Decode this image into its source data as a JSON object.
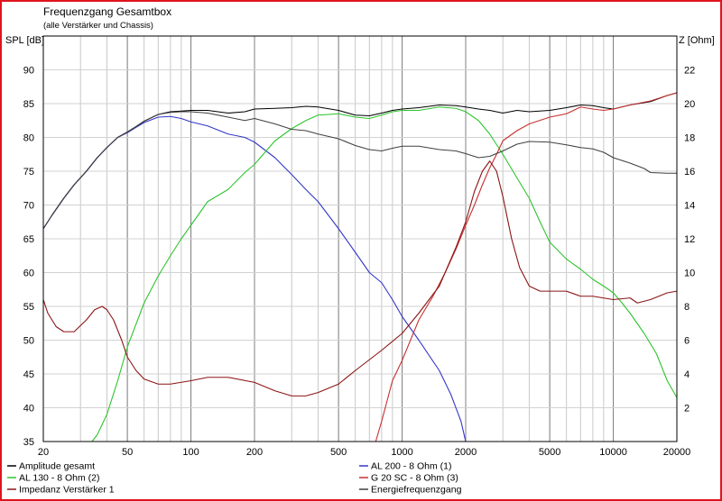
{
  "chart_data": {
    "type": "line",
    "title": "Frequenzgang Gesamtbox",
    "subtitle": "(alle Verstärker und Chassis)",
    "ylabel_left": "SPL [dB]",
    "ylabel_right": "Z [Ohm]",
    "x_scale": "log",
    "xlim": [
      20,
      20000
    ],
    "ylim_left": [
      35,
      95
    ],
    "ylim_right": [
      0,
      24
    ],
    "x_ticks": [
      20,
      50,
      100,
      200,
      500,
      1000,
      2000,
      5000,
      10000,
      20000
    ],
    "x_tick_labels": [
      "20",
      "50",
      "100",
      "200",
      "500",
      "1000",
      "2000",
      "5000",
      "10000",
      "20000"
    ],
    "y_left_ticks": [
      35,
      40,
      45,
      50,
      55,
      60,
      65,
      70,
      75,
      80,
      85,
      90
    ],
    "y_left_tick_labels": [
      "35",
      "40",
      "45",
      "50",
      "55",
      "60",
      "65",
      "70",
      "75",
      "80",
      "85",
      "90"
    ],
    "y_right_ticks": [
      2,
      4,
      6,
      8,
      10,
      12,
      14,
      16,
      18,
      20,
      22
    ],
    "y_right_tick_labels": [
      "2",
      "4",
      "6",
      "8",
      "10",
      "12",
      "14",
      "16",
      "18",
      "20",
      "22"
    ],
    "grid": true,
    "legend_position": "bottom",
    "series": [
      {
        "name": "Amplitude gesamt",
        "axis": "left",
        "color": "#000000",
        "points": [
          [
            20,
            66.5
          ],
          [
            22,
            68.5
          ],
          [
            25,
            71
          ],
          [
            28,
            73
          ],
          [
            32,
            75
          ],
          [
            36,
            77
          ],
          [
            40,
            78.5
          ],
          [
            45,
            80
          ],
          [
            50,
            80.8
          ],
          [
            55,
            81.6
          ],
          [
            60,
            82.4
          ],
          [
            70,
            83.4
          ],
          [
            80,
            83.8
          ],
          [
            90,
            83.9
          ],
          [
            100,
            84
          ],
          [
            120,
            84
          ],
          [
            150,
            83.6
          ],
          [
            180,
            83.8
          ],
          [
            200,
            84.2
          ],
          [
            250,
            84.3
          ],
          [
            300,
            84.4
          ],
          [
            350,
            84.6
          ],
          [
            400,
            84.5
          ],
          [
            500,
            84
          ],
          [
            600,
            83.3
          ],
          [
            700,
            83.2
          ],
          [
            800,
            83.6
          ],
          [
            900,
            84
          ],
          [
            1000,
            84.2
          ],
          [
            1200,
            84.4
          ],
          [
            1500,
            84.8
          ],
          [
            1800,
            84.7
          ],
          [
            2000,
            84.5
          ],
          [
            2300,
            84.2
          ],
          [
            2600,
            84
          ],
          [
            3000,
            83.6
          ],
          [
            3500,
            84
          ],
          [
            4000,
            83.8
          ],
          [
            5000,
            84
          ],
          [
            6000,
            84.4
          ],
          [
            7000,
            84.8
          ],
          [
            8000,
            84.7
          ],
          [
            9000,
            84.4
          ],
          [
            10000,
            84.2
          ],
          [
            12000,
            84.8
          ],
          [
            15000,
            85.3
          ],
          [
            18000,
            86.2
          ],
          [
            20000,
            86.6
          ]
        ]
      },
      {
        "name": "AL 200 - 8 Ohm (1)",
        "axis": "left",
        "color": "#3338c8",
        "points": [
          [
            20,
            66.5
          ],
          [
            22,
            68.5
          ],
          [
            25,
            71
          ],
          [
            28,
            73
          ],
          [
            32,
            75
          ],
          [
            36,
            77
          ],
          [
            40,
            78.5
          ],
          [
            45,
            80
          ],
          [
            50,
            80.7
          ],
          [
            55,
            81.5
          ],
          [
            60,
            82.2
          ],
          [
            70,
            83
          ],
          [
            80,
            83.1
          ],
          [
            90,
            82.8
          ],
          [
            100,
            82.3
          ],
          [
            120,
            81.7
          ],
          [
            150,
            80.5
          ],
          [
            180,
            80
          ],
          [
            200,
            79.3
          ],
          [
            250,
            77
          ],
          [
            300,
            74.5
          ],
          [
            350,
            72.3
          ],
          [
            400,
            70.5
          ],
          [
            500,
            66.5
          ],
          [
            600,
            63
          ],
          [
            700,
            60
          ],
          [
            800,
            58.5
          ],
          [
            900,
            56
          ],
          [
            1000,
            53.5
          ],
          [
            1200,
            50
          ],
          [
            1500,
            45.5
          ],
          [
            1700,
            42
          ],
          [
            1900,
            38
          ],
          [
            2000,
            35
          ]
        ]
      },
      {
        "name": "AL 130 - 8 Ohm (2)",
        "axis": "left",
        "color": "#2fc42f",
        "points": [
          [
            20,
            35
          ],
          [
            34,
            35
          ],
          [
            36,
            36
          ],
          [
            40,
            39
          ],
          [
            45,
            44
          ],
          [
            50,
            49
          ],
          [
            60,
            55.5
          ],
          [
            70,
            59.5
          ],
          [
            80,
            62.5
          ],
          [
            90,
            65
          ],
          [
            100,
            67
          ],
          [
            120,
            70.5
          ],
          [
            150,
            72.3
          ],
          [
            180,
            74.8
          ],
          [
            200,
            76
          ],
          [
            250,
            79.5
          ],
          [
            300,
            81.3
          ],
          [
            350,
            82.5
          ],
          [
            400,
            83.3
          ],
          [
            500,
            83.5
          ],
          [
            600,
            83
          ],
          [
            700,
            82.8
          ],
          [
            800,
            83.3
          ],
          [
            900,
            83.8
          ],
          [
            1000,
            84
          ],
          [
            1200,
            84
          ],
          [
            1500,
            84.5
          ],
          [
            1800,
            84.3
          ],
          [
            2000,
            83.8
          ],
          [
            2300,
            82.5
          ],
          [
            2600,
            80.5
          ],
          [
            3000,
            77.5
          ],
          [
            3500,
            74
          ],
          [
            4000,
            71
          ],
          [
            4500,
            67.5
          ],
          [
            5000,
            64.5
          ],
          [
            6000,
            62
          ],
          [
            7000,
            60.5
          ],
          [
            8000,
            59
          ],
          [
            9000,
            58
          ],
          [
            10000,
            57
          ],
          [
            11000,
            55.5
          ],
          [
            12000,
            54
          ],
          [
            14000,
            51
          ],
          [
            16000,
            48
          ],
          [
            18000,
            44
          ],
          [
            20000,
            41.5
          ]
        ]
      },
      {
        "name": "G 20 SC - 8 Ohm (3)",
        "axis": "left",
        "color": "#c83030",
        "points": [
          [
            20,
            35
          ],
          [
            750,
            35
          ],
          [
            800,
            38
          ],
          [
            900,
            44
          ],
          [
            1000,
            47
          ],
          [
            1200,
            53
          ],
          [
            1400,
            56.5
          ],
          [
            1600,
            60
          ],
          [
            1800,
            63.5
          ],
          [
            2000,
            67
          ],
          [
            2200,
            70
          ],
          [
            2400,
            73
          ],
          [
            2600,
            75.5
          ],
          [
            2800,
            77.5
          ],
          [
            3000,
            79.5
          ],
          [
            3500,
            81
          ],
          [
            4000,
            82
          ],
          [
            5000,
            83
          ],
          [
            6000,
            83.5
          ],
          [
            7000,
            84.5
          ],
          [
            8000,
            84.2
          ],
          [
            9000,
            84
          ],
          [
            10000,
            84.2
          ],
          [
            12000,
            84.8
          ],
          [
            15000,
            85.4
          ],
          [
            18000,
            86.2
          ],
          [
            20000,
            86.6
          ]
        ]
      },
      {
        "name": "Impedanz Verstärker 1",
        "axis": "right",
        "color": "#8b1515",
        "points": [
          [
            20,
            8.4
          ],
          [
            21,
            7.6
          ],
          [
            23,
            6.8
          ],
          [
            25,
            6.5
          ],
          [
            28,
            6.5
          ],
          [
            32,
            7.2
          ],
          [
            35,
            7.8
          ],
          [
            38,
            8
          ],
          [
            40,
            7.8
          ],
          [
            43,
            7.2
          ],
          [
            47,
            6
          ],
          [
            50,
            5
          ],
          [
            55,
            4.2
          ],
          [
            60,
            3.7
          ],
          [
            70,
            3.4
          ],
          [
            80,
            3.4
          ],
          [
            100,
            3.6
          ],
          [
            120,
            3.8
          ],
          [
            150,
            3.8
          ],
          [
            200,
            3.5
          ],
          [
            250,
            3
          ],
          [
            300,
            2.7
          ],
          [
            350,
            2.7
          ],
          [
            400,
            2.9
          ],
          [
            500,
            3.4
          ],
          [
            600,
            4.2
          ],
          [
            800,
            5.4
          ],
          [
            1000,
            6.4
          ],
          [
            1200,
            7.6
          ],
          [
            1500,
            9.2
          ],
          [
            1800,
            11.5
          ],
          [
            2000,
            13
          ],
          [
            2200,
            14.8
          ],
          [
            2400,
            16
          ],
          [
            2600,
            16.6
          ],
          [
            2800,
            16
          ],
          [
            3000,
            14.5
          ],
          [
            3300,
            12
          ],
          [
            3600,
            10.3
          ],
          [
            4000,
            9.2
          ],
          [
            4500,
            8.9
          ],
          [
            5000,
            8.9
          ],
          [
            6000,
            8.9
          ],
          [
            7000,
            8.6
          ],
          [
            8000,
            8.6
          ],
          [
            10000,
            8.4
          ],
          [
            12000,
            8.5
          ],
          [
            13000,
            8.2
          ],
          [
            15000,
            8.4
          ],
          [
            18000,
            8.8
          ],
          [
            20000,
            8.9
          ]
        ]
      },
      {
        "name": "Energiefrequenzgang",
        "axis": "left",
        "color": "#404040",
        "points": [
          [
            20,
            66.5
          ],
          [
            22,
            68.5
          ],
          [
            25,
            71
          ],
          [
            28,
            73
          ],
          [
            32,
            75
          ],
          [
            36,
            77
          ],
          [
            40,
            78.5
          ],
          [
            45,
            80
          ],
          [
            50,
            80.8
          ],
          [
            55,
            81.6
          ],
          [
            60,
            82.4
          ],
          [
            70,
            83.4
          ],
          [
            80,
            83.7
          ],
          [
            90,
            83.8
          ],
          [
            100,
            83.8
          ],
          [
            120,
            83.6
          ],
          [
            150,
            83
          ],
          [
            180,
            82.5
          ],
          [
            200,
            82.8
          ],
          [
            250,
            82
          ],
          [
            300,
            81.2
          ],
          [
            350,
            81
          ],
          [
            400,
            80.5
          ],
          [
            500,
            79.8
          ],
          [
            600,
            78.8
          ],
          [
            700,
            78.2
          ],
          [
            800,
            78
          ],
          [
            900,
            78.4
          ],
          [
            1000,
            78.7
          ],
          [
            1200,
            78.7
          ],
          [
            1500,
            78.2
          ],
          [
            1800,
            78
          ],
          [
            2000,
            77.6
          ],
          [
            2300,
            77
          ],
          [
            2600,
            77.2
          ],
          [
            3000,
            78
          ],
          [
            3500,
            79
          ],
          [
            4000,
            79.4
          ],
          [
            5000,
            79.3
          ],
          [
            6000,
            78.9
          ],
          [
            7000,
            78.5
          ],
          [
            8000,
            78.3
          ],
          [
            9000,
            77.8
          ],
          [
            10000,
            77
          ],
          [
            12000,
            76.2
          ],
          [
            14000,
            75.4
          ],
          [
            15000,
            74.8
          ],
          [
            18000,
            74.7
          ],
          [
            20000,
            74.7
          ]
        ]
      }
    ]
  }
}
